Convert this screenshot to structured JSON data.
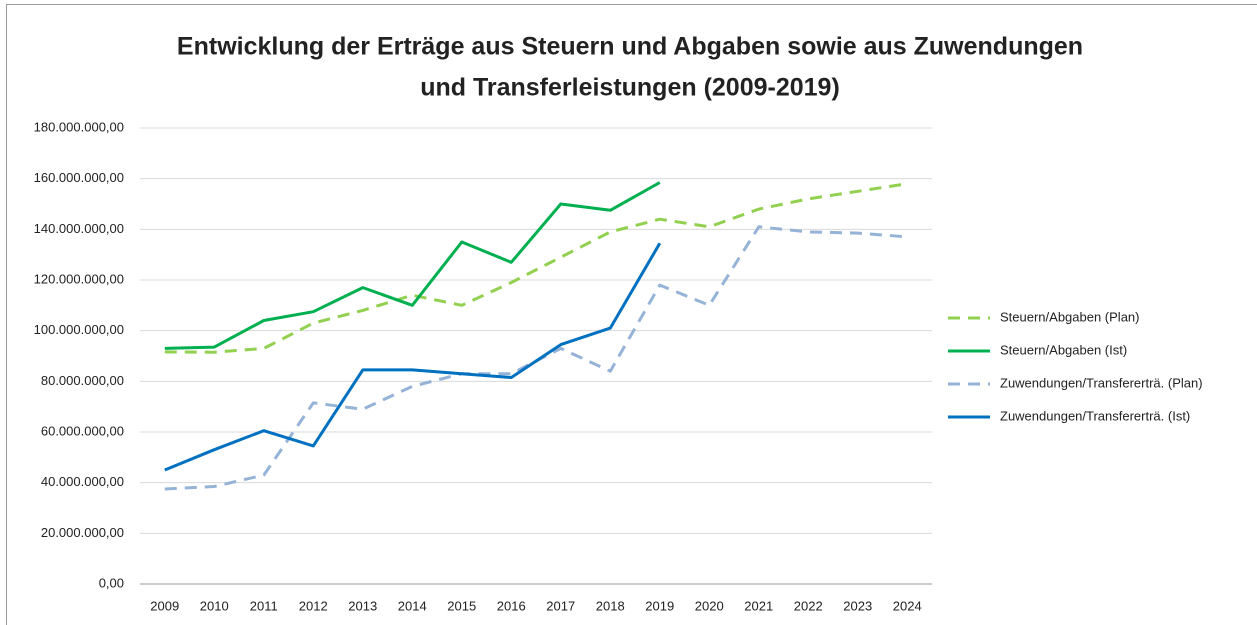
{
  "chart_data": {
    "type": "line",
    "title": [
      "Entwicklung der Erträge aus Steuern und Abgaben sowie aus Zuwendungen",
      "und Transferleistungen (2009-2019)"
    ],
    "categories": [
      "2009",
      "2010",
      "2011",
      "2012",
      "2013",
      "2014",
      "2015",
      "2016",
      "2017",
      "2018",
      "2019",
      "2020",
      "2021",
      "2022",
      "2023",
      "2024"
    ],
    "series": [
      {
        "name": "Steuern/Abgaben (Plan)",
        "color": "#92d050",
        "dashed": true,
        "values": [
          91600000,
          91500000,
          93000000,
          103000000,
          108000000,
          114000000,
          110000000,
          119000000,
          129000000,
          139000000,
          144000000,
          141000000,
          148000000,
          152000000,
          155000000,
          158000000
        ]
      },
      {
        "name": "Steuern/Abgaben (Ist)",
        "color": "#00b050",
        "dashed": false,
        "values": [
          93000000,
          93500000,
          104000000,
          107500000,
          117000000,
          110000000,
          135000000,
          127000000,
          150000000,
          147500000,
          158500000,
          null,
          null,
          null,
          null,
          null
        ]
      },
      {
        "name": "Zuwendungen/Transfererträ. (Plan)",
        "color": "#95b3d7",
        "dashed": true,
        "values": [
          37500000,
          38500000,
          43000000,
          71500000,
          69000000,
          78000000,
          83000000,
          83000000,
          93000000,
          84000000,
          118000000,
          110000000,
          141000000,
          139000000,
          138500000,
          137000000
        ]
      },
      {
        "name": "Zuwendungen/Transfererträ. (Ist)",
        "color": "#0070c0",
        "dashed": false,
        "values": [
          45000000,
          53000000,
          60500000,
          54500000,
          84500000,
          84500000,
          83000000,
          81500000,
          94500000,
          101000000,
          134500000,
          null,
          null,
          null,
          null,
          null
        ]
      }
    ],
    "ylim": [
      0,
      180000000
    ],
    "yticks": [
      {
        "value": 0,
        "label": "0,00"
      },
      {
        "value": 20000000,
        "label": "20.000.000,00"
      },
      {
        "value": 40000000,
        "label": "40.000.000,00"
      },
      {
        "value": 60000000,
        "label": "60.000.000,00"
      },
      {
        "value": 80000000,
        "label": "80.000.000,00"
      },
      {
        "value": 100000000,
        "label": "100.000.000,00"
      },
      {
        "value": 120000000,
        "label": "120.000.000,00"
      },
      {
        "value": 140000000,
        "label": "140.000.000,00"
      },
      {
        "value": 160000000,
        "label": "160.000.000,00"
      },
      {
        "value": 180000000,
        "label": "180.000.000,00"
      }
    ],
    "grid": true,
    "legend": "right"
  }
}
